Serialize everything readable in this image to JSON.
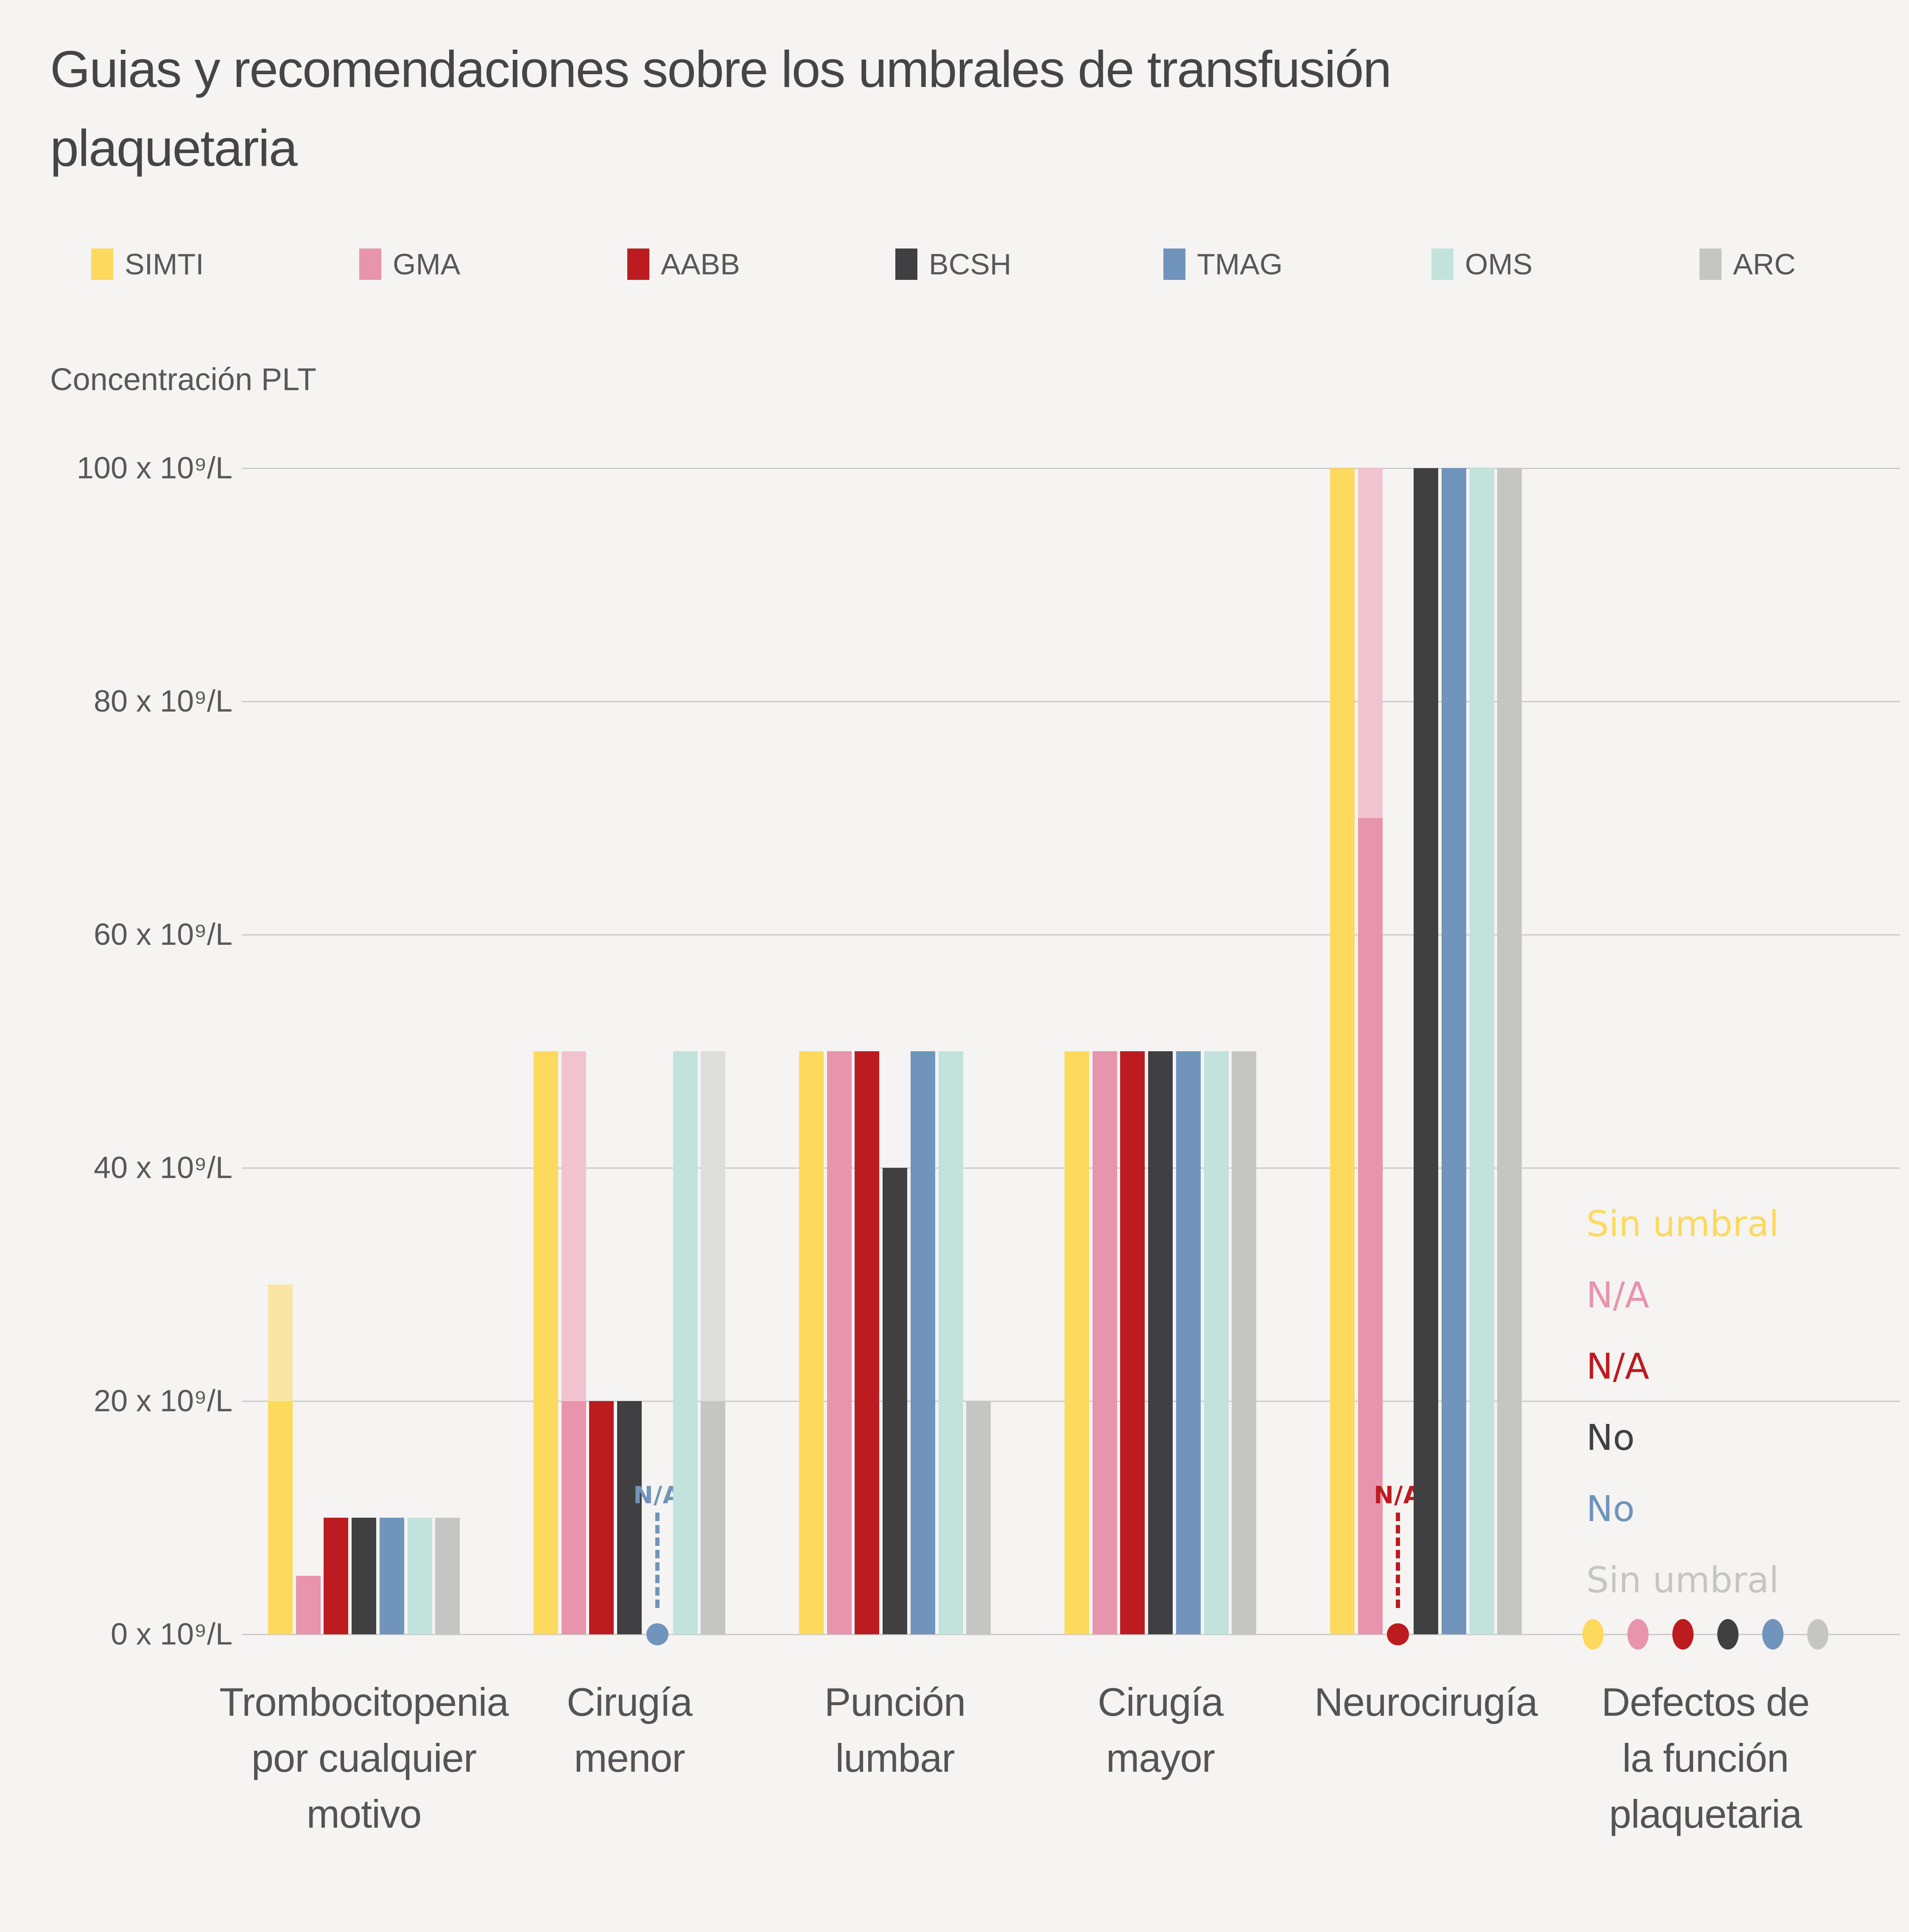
{
  "page": {
    "background": "#F5F4F2",
    "grid_color": "#CBCBCA"
  },
  "chart_data": {
    "type": "bar",
    "title": "Guias y recomendaciones sobre los umbrales de transfusión plaquetaria",
    "title_lines": [
      "Guias y recomendaciones sobre los umbrales de transfusión",
      "plaquetaria"
    ],
    "ylabel": "Concentración PLT",
    "xlabel": "",
    "ylim": [
      0,
      100
    ],
    "grid": true,
    "legend_position": "top",
    "yticks": [
      {
        "value": 0,
        "label": "0 x 10⁹/L"
      },
      {
        "value": 20,
        "label": "20 x 10⁹/L"
      },
      {
        "value": 40,
        "label": "40 x 10⁹/L"
      },
      {
        "value": 60,
        "label": "60 x 10⁹/L"
      },
      {
        "value": 80,
        "label": "80 x 10⁹/L"
      },
      {
        "value": 100,
        "label": "100 x 10⁹/L"
      }
    ],
    "series": [
      {
        "name": "SIMTI",
        "color": "#FDD95E",
        "light_color": "#F9E6A4"
      },
      {
        "name": "GMA",
        "color": "#E794AC",
        "light_color": "#F1C3D0"
      },
      {
        "name": "AABB",
        "color": "#BC1B20",
        "light_color": "#E5A3A6"
      },
      {
        "name": "BCSH",
        "color": "#403F41",
        "light_color": "#9F9FA0"
      },
      {
        "name": "TMAG",
        "color": "#7094BB",
        "light_color": "#BCCDE0"
      },
      {
        "name": "OMS",
        "color": "#C2E2DC",
        "light_color": "#DFF0ED"
      },
      {
        "name": "ARC",
        "color": "#C5C6C4",
        "light_color": "#DDDDDC"
      }
    ],
    "categories": [
      {
        "label": "Trombocitopenia por cualquier motivo",
        "label_lines": [
          "Trombocitopenia",
          "por cualquier",
          "motivo"
        ],
        "cells": [
          {
            "kind": "bar",
            "value": 20,
            "range_max": 30
          },
          {
            "kind": "bar",
            "value": 5
          },
          {
            "kind": "bar",
            "value": 10
          },
          {
            "kind": "bar",
            "value": 10
          },
          {
            "kind": "bar",
            "value": 10
          },
          {
            "kind": "bar",
            "value": 10
          },
          {
            "kind": "bar",
            "value": 10
          }
        ]
      },
      {
        "label": "Cirugía menor",
        "label_lines": [
          "Cirugía",
          "menor"
        ],
        "cells": [
          {
            "kind": "bar",
            "value": 50
          },
          {
            "kind": "bar",
            "value": 20,
            "range_max": 50
          },
          {
            "kind": "bar",
            "value": 20
          },
          {
            "kind": "bar",
            "value": 20
          },
          {
            "kind": "na",
            "label": "N/A"
          },
          {
            "kind": "bar",
            "value": 50
          },
          {
            "kind": "bar",
            "value": 20,
            "range_max": 50
          }
        ]
      },
      {
        "label": "Punción lumbar",
        "label_lines": [
          "Punción",
          "lumbar"
        ],
        "cells": [
          {
            "kind": "bar",
            "value": 50
          },
          {
            "kind": "bar",
            "value": 50
          },
          {
            "kind": "bar",
            "value": 50
          },
          {
            "kind": "bar",
            "value": 40
          },
          {
            "kind": "bar",
            "value": 50
          },
          {
            "kind": "bar",
            "value": 50
          },
          {
            "kind": "bar",
            "value": 20
          }
        ]
      },
      {
        "label": "Cirugía mayor",
        "label_lines": [
          "Cirugía",
          "mayor"
        ],
        "cells": [
          {
            "kind": "bar",
            "value": 50
          },
          {
            "kind": "bar",
            "value": 50
          },
          {
            "kind": "bar",
            "value": 50
          },
          {
            "kind": "bar",
            "value": 50
          },
          {
            "kind": "bar",
            "value": 50
          },
          {
            "kind": "bar",
            "value": 50
          },
          {
            "kind": "bar",
            "value": 50
          }
        ]
      },
      {
        "label": "Neurocirugía",
        "label_lines": [
          "Neurocirugía"
        ],
        "cells": [
          {
            "kind": "bar",
            "value": 100
          },
          {
            "kind": "bar",
            "value": 70,
            "range_max": 100
          },
          {
            "kind": "na",
            "label": "N/A"
          },
          {
            "kind": "bar",
            "value": 100
          },
          {
            "kind": "bar",
            "value": 100
          },
          {
            "kind": "bar",
            "value": 100
          },
          {
            "kind": "bar",
            "value": 100
          }
        ]
      },
      {
        "label": "Defectos de la función plaquetaria",
        "label_lines": [
          "Defectos de",
          "la función",
          "plaquetaria"
        ],
        "cells": [
          {
            "kind": "note",
            "label": "Sin umbral"
          },
          {
            "kind": "note",
            "label": "N/A"
          },
          {
            "kind": "note",
            "label": "N/A"
          },
          {
            "kind": "note",
            "label": "No"
          },
          {
            "kind": "note",
            "label": "No"
          },
          null,
          {
            "kind": "note",
            "label": "Sin umbral"
          }
        ]
      }
    ]
  }
}
